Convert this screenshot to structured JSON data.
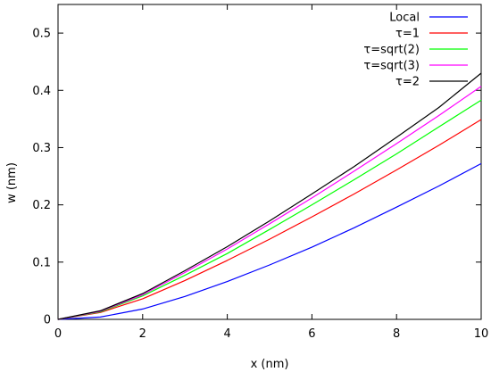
{
  "chart_data": {
    "type": "line",
    "title": "",
    "xlabel": "x (nm)",
    "ylabel": "w (nm)",
    "xlim": [
      0,
      10
    ],
    "ylim": [
      0,
      0.55
    ],
    "xticks": [
      0,
      2,
      4,
      6,
      8,
      10
    ],
    "yticks": [
      0,
      0.1,
      0.2,
      0.3,
      0.4,
      0.5
    ],
    "xtick_labels": [
      "0",
      "2",
      "4",
      "6",
      "8",
      "10"
    ],
    "ytick_labels": [
      "0",
      "0.1",
      "0.2",
      "0.3",
      "0.4",
      "0.5"
    ],
    "grid": false,
    "legend_position": "top-right",
    "x": [
      0,
      1,
      2,
      3,
      4,
      5,
      6,
      7,
      8,
      9,
      10
    ],
    "series": [
      {
        "name": "Local",
        "color": "#0000ff",
        "values": [
          0,
          0.004,
          0.018,
          0.04,
          0.066,
          0.095,
          0.126,
          0.16,
          0.196,
          0.233,
          0.272
        ]
      },
      {
        "name": "τ=1",
        "color": "#ff0000",
        "values": [
          0,
          0.012,
          0.036,
          0.068,
          0.103,
          0.14,
          0.179,
          0.219,
          0.261,
          0.304,
          0.349
        ]
      },
      {
        "name": "τ=sqrt(2)",
        "color": "#00ff00",
        "values": [
          0,
          0.013,
          0.041,
          0.077,
          0.115,
          0.157,
          0.2,
          0.244,
          0.289,
          0.336,
          0.383
        ]
      },
      {
        "name": "τ=sqrt(3)",
        "color": "#ff00ff",
        "values": [
          0,
          0.014,
          0.043,
          0.082,
          0.123,
          0.167,
          0.212,
          0.259,
          0.307,
          0.356,
          0.407
        ]
      },
      {
        "name": "τ=2",
        "color": "#000000",
        "values": [
          0,
          0.015,
          0.045,
          0.085,
          0.127,
          0.172,
          0.219,
          0.267,
          0.318,
          0.37,
          0.43
        ]
      }
    ]
  }
}
